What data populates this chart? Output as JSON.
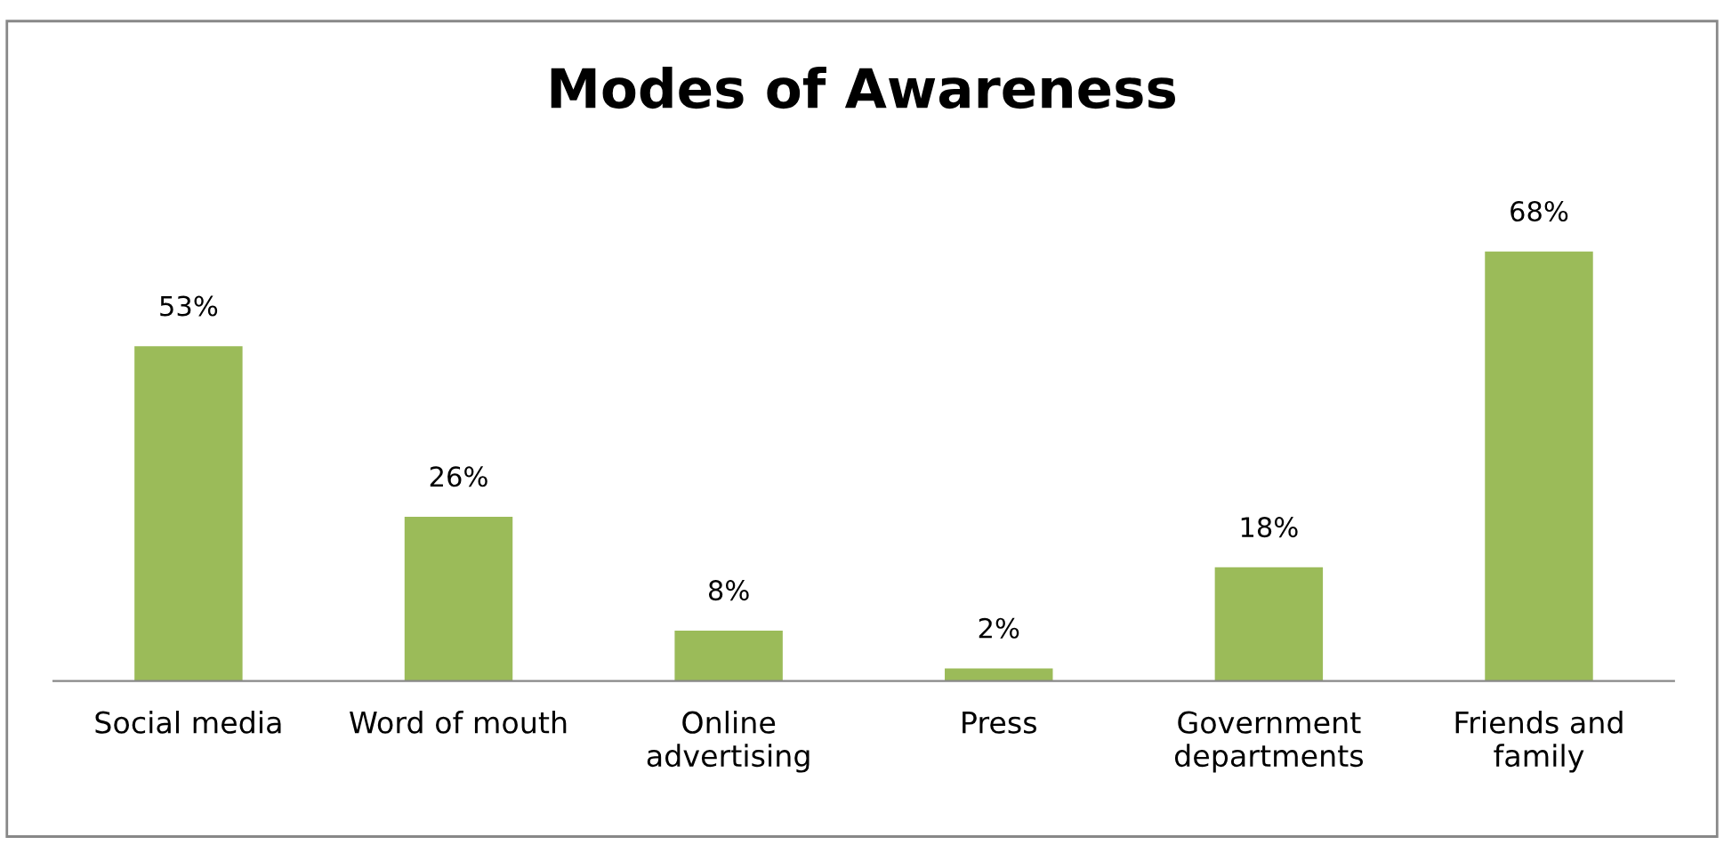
{
  "chart_data": {
    "type": "bar",
    "title": "Modes of Awareness",
    "categories": [
      "Social media",
      "Word of mouth",
      "Online\nadvertising",
      "Press",
      "Government\ndepartments",
      "Friends and\nfamily"
    ],
    "values": [
      53,
      26,
      8,
      2,
      18,
      68
    ],
    "value_labels": [
      "53%",
      "26%",
      "8%",
      "2%",
      "18%",
      "68%"
    ],
    "color": "#9bbb59",
    "grid": false,
    "legend": false
  }
}
